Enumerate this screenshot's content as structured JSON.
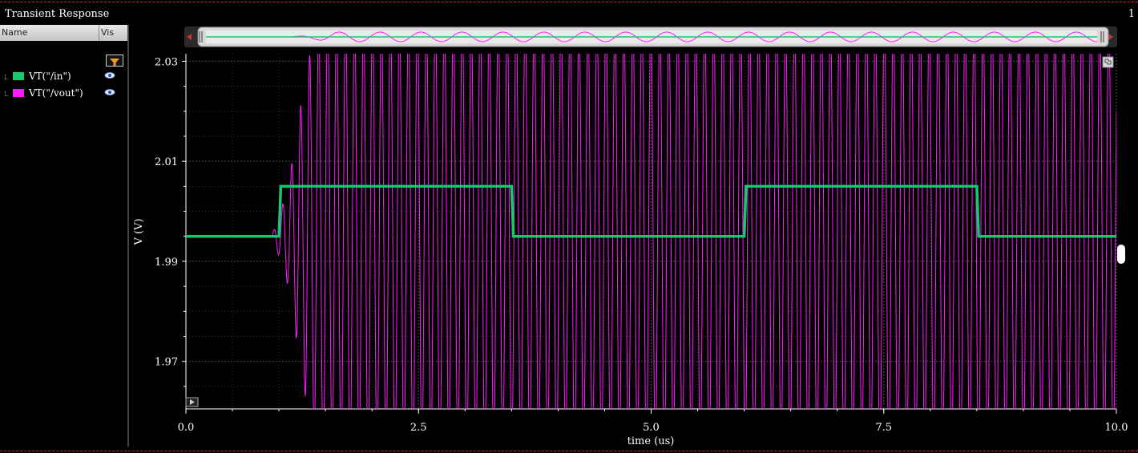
{
  "window": {
    "title": "Transient Response",
    "corner_label": "1"
  },
  "legend": {
    "headers": {
      "name": "Name",
      "vis": "Vis"
    },
    "items": [
      {
        "label": "VT(\"/in\")",
        "color": "#19c86e"
      },
      {
        "label": "VT(\"/vout\")",
        "color": "#ff1aff"
      }
    ]
  },
  "chart_data": {
    "type": "line",
    "xlabel": "time (us)",
    "ylabel": "V (V)",
    "xlim": [
      0,
      10
    ],
    "ylim": [
      1.9605,
      2.0315
    ],
    "xticks": [
      0,
      2.5,
      5,
      7.5,
      10
    ],
    "xtick_labels": [
      "0.0",
      "2.5",
      "5.0",
      "7.5",
      "10.0"
    ],
    "yticks": [
      1.97,
      1.99,
      2.01,
      2.03
    ],
    "ytick_labels": [
      "1.97",
      "1.99",
      "2.01",
      "2.03"
    ],
    "grid": true,
    "colors": {
      "background": "#000000",
      "grid": "#555555",
      "axis_text": "#ffffff"
    },
    "series": [
      {
        "name": "VT(\"/in\")",
        "color": "#19c86e",
        "x": [
          0,
          1.0,
          1.02,
          3.5,
          3.52,
          6.0,
          6.02,
          8.5,
          8.52,
          10.0
        ],
        "y": [
          1.995,
          1.995,
          2.005,
          2.005,
          1.995,
          1.995,
          2.005,
          2.005,
          1.995,
          1.995
        ]
      },
      {
        "name": "VT(\"/vout\")",
        "color": "#ff1aff",
        "oscillation": {
          "start_time": 0.92,
          "period": 0.0965,
          "center": 1.995,
          "envelope_t": [
            0.92,
            1.0,
            1.1,
            1.2,
            1.3,
            1.45,
            10.0
          ],
          "envelope_amp": [
            0.0,
            0.004,
            0.01,
            0.022,
            0.034,
            0.045,
            0.045
          ]
        }
      }
    ]
  }
}
